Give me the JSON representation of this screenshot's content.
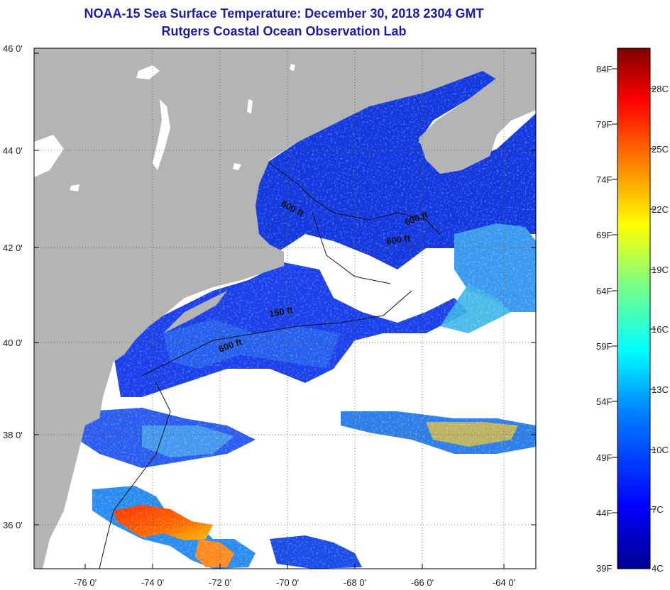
{
  "title": {
    "line1": "NOAA-15 Sea Surface Temperature:  December 30, 2018 2304 GMT",
    "line2": "Rutgers Coastal Ocean Observation Lab"
  },
  "lat_labels": [
    "46 0'",
    "44 0'",
    "42 0'",
    "40 0'",
    "38 0'",
    "36 0'"
  ],
  "lon_labels": [
    "-76 0'",
    "-74 0'",
    "-72 0'",
    "-70 0'",
    "-68 0'",
    "-66 0'",
    "-64 0'"
  ],
  "contour_labels": [
    "600 ft",
    "600 ft",
    "600 ft",
    "150 ft",
    "600 ft"
  ],
  "colorbar": {
    "fahrenheit": [
      "84F",
      "79F",
      "74F",
      "69F",
      "64F",
      "59F",
      "54F",
      "49F",
      "44F",
      "39F"
    ],
    "celsius": [
      "28C",
      "25C",
      "22C",
      "19C",
      "16C",
      "13C",
      "10C",
      "7C",
      "4C"
    ],
    "colors": [
      "#00008f",
      "#0000ff",
      "#0080ff",
      "#00ffff",
      "#80ff80",
      "#ffff00",
      "#ff8000",
      "#ff0000",
      "#800000"
    ]
  },
  "colors": {
    "land": "#b4b4b4",
    "cloud": "#ffffff",
    "cold_water": "#1a3de8",
    "title": "#1c1ca8"
  }
}
